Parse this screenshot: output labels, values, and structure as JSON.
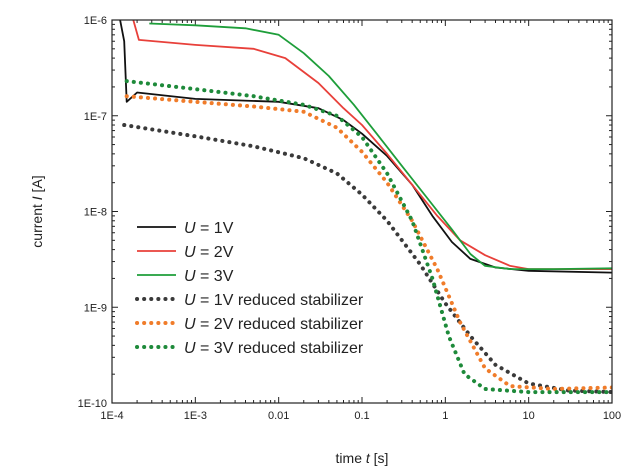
{
  "chart_data": {
    "type": "line",
    "title": "",
    "xlabel": {
      "prefix": "time ",
      "symbol": "t",
      "suffix": " [s]"
    },
    "ylabel": {
      "prefix": "current ",
      "symbol": "I",
      "suffix": " [A]"
    },
    "x_scale": "log",
    "y_scale": "log",
    "xlim": [
      0.0001,
      100
    ],
    "ylim": [
      1e-10,
      1e-06
    ],
    "grid": false,
    "legend_position": "bottom-left",
    "x_ticks": [
      {
        "value": 0.0001,
        "label": "1E-4"
      },
      {
        "value": 0.001,
        "label": "1E-3"
      },
      {
        "value": 0.01,
        "label": "0.01"
      },
      {
        "value": 0.1,
        "label": "0.1"
      },
      {
        "value": 1,
        "label": "1"
      },
      {
        "value": 10,
        "label": "10"
      },
      {
        "value": 100,
        "label": "100"
      }
    ],
    "y_ticks": [
      {
        "value": 1e-10,
        "label": "1E-10"
      },
      {
        "value": 1e-09,
        "label": "1E-9"
      },
      {
        "value": 1e-08,
        "label": "1E-8"
      },
      {
        "value": 1e-07,
        "label": "1E-7"
      },
      {
        "value": 1e-06,
        "label": "1E-6"
      }
    ],
    "series": [
      {
        "symbol": "U",
        "rest": " = 1V",
        "color": "#111111",
        "style": "solid",
        "points": [
          [
            0.000125,
            1e-06
          ],
          [
            0.00014,
            6e-07
          ],
          [
            0.00015,
            1.4e-07
          ],
          [
            0.0002,
            1.75e-07
          ],
          [
            0.001,
            1.5e-07
          ],
          [
            0.01,
            1.4e-07
          ],
          [
            0.03,
            1.2e-07
          ],
          [
            0.06,
            9e-08
          ],
          [
            0.1,
            6.5e-08
          ],
          [
            0.2,
            3.8e-08
          ],
          [
            0.4,
            1.9e-08
          ],
          [
            0.7,
            9e-09
          ],
          [
            1.2,
            4.8e-09
          ],
          [
            2,
            3.2e-09
          ],
          [
            4,
            2.6e-09
          ],
          [
            10,
            2.4e-09
          ],
          [
            100,
            2.3e-09
          ]
        ]
      },
      {
        "symbol": "U",
        "rest": " = 2V",
        "color": "#e8403a",
        "style": "solid",
        "points": [
          [
            0.00018,
            1e-06
          ],
          [
            0.00021,
            6.2e-07
          ],
          [
            0.001,
            5.5e-07
          ],
          [
            0.005,
            5e-07
          ],
          [
            0.012,
            4e-07
          ],
          [
            0.03,
            2.2e-07
          ],
          [
            0.06,
            1.2e-07
          ],
          [
            0.1,
            8e-08
          ],
          [
            0.2,
            4e-08
          ],
          [
            0.4,
            1.9e-08
          ],
          [
            0.8,
            9e-09
          ],
          [
            1.5,
            5e-09
          ],
          [
            3,
            3.5e-09
          ],
          [
            6,
            2.7e-09
          ],
          [
            10,
            2.5e-09
          ],
          [
            100,
            2.5e-09
          ]
        ]
      },
      {
        "symbol": "U",
        "rest": " = 3V",
        "color": "#1e9e3a",
        "style": "solid",
        "points": [
          [
            0.00028,
            9.2e-07
          ],
          [
            0.001,
            8.8e-07
          ],
          [
            0.004,
            8.2e-07
          ],
          [
            0.01,
            7e-07
          ],
          [
            0.02,
            4.5e-07
          ],
          [
            0.04,
            2.6e-07
          ],
          [
            0.08,
            1.3e-07
          ],
          [
            0.15,
            6.5e-08
          ],
          [
            0.3,
            3e-08
          ],
          [
            0.6,
            1.4e-08
          ],
          [
            1.2,
            6.5e-09
          ],
          [
            2,
            3.6e-09
          ],
          [
            3,
            2.7e-09
          ],
          [
            6,
            2.5e-09
          ],
          [
            20,
            2.5e-09
          ],
          [
            100,
            2.55e-09
          ]
        ]
      },
      {
        "symbol": "U",
        "rest": " = 1V reduced stabilizer",
        "color": "#3a3a3a",
        "style": "dotted",
        "points": [
          [
            0.00014,
            8e-08
          ],
          [
            0.001,
            6.1e-08
          ],
          [
            0.005,
            4.8e-08
          ],
          [
            0.02,
            3.6e-08
          ],
          [
            0.05,
            2.5e-08
          ],
          [
            0.1,
            1.5e-08
          ],
          [
            0.2,
            8e-09
          ],
          [
            0.5,
            2.8e-09
          ],
          [
            1,
            1.1e-09
          ],
          [
            2,
            5e-10
          ],
          [
            4,
            2.5e-10
          ],
          [
            10,
            1.6e-10
          ],
          [
            30,
            1.35e-10
          ],
          [
            100,
            1.3e-10
          ]
        ]
      },
      {
        "symbol": "U",
        "rest": " = 2V reduced stabilizer",
        "color": "#f07c2a",
        "style": "dotted",
        "points": [
          [
            0.00015,
            1.6e-07
          ],
          [
            0.001,
            1.4e-07
          ],
          [
            0.005,
            1.25e-07
          ],
          [
            0.02,
            1.1e-07
          ],
          [
            0.05,
            7.5e-08
          ],
          [
            0.1,
            4.2e-08
          ],
          [
            0.2,
            2e-08
          ],
          [
            0.4,
            8e-09
          ],
          [
            0.8,
            2.5e-09
          ],
          [
            1.5,
            7e-10
          ],
          [
            3,
            2.3e-10
          ],
          [
            6,
            1.5e-10
          ],
          [
            20,
            1.4e-10
          ],
          [
            100,
            1.45e-10
          ]
        ]
      },
      {
        "symbol": "U",
        "rest": " = 3V reduced stabilizer",
        "color": "#1e8a3a",
        "style": "dotted",
        "points": [
          [
            0.00015,
            2.3e-07
          ],
          [
            0.001,
            1.9e-07
          ],
          [
            0.005,
            1.6e-07
          ],
          [
            0.02,
            1.3e-07
          ],
          [
            0.05,
            1e-07
          ],
          [
            0.1,
            6e-08
          ],
          [
            0.2,
            2.5e-08
          ],
          [
            0.4,
            8e-09
          ],
          [
            0.7,
            2e-09
          ],
          [
            1.1,
            5e-10
          ],
          [
            1.7,
            2e-10
          ],
          [
            3,
            1.4e-10
          ],
          [
            10,
            1.3e-10
          ],
          [
            100,
            1.3e-10
          ]
        ]
      }
    ]
  }
}
